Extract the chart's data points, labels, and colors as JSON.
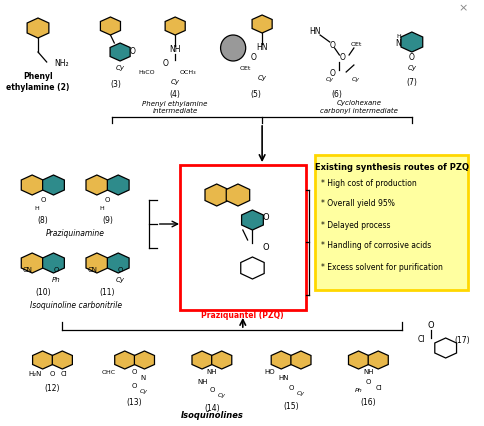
{
  "bg_color": "#ffffff",
  "yellow": "#E8B84B",
  "teal": "#2E8B8B",
  "info_box_bg": "#FFFFA0",
  "info_box_border": "#FFD700",
  "info_title": "Existing synthesis routes of PZQ",
  "info_bullets": [
    "* High cost of production",
    "* Overall yield 95%",
    "* Delayed process",
    "* Handling of corrosive acids",
    "* Excess solvent for purification"
  ],
  "pzq_label": "Praziquantel (PZQ)",
  "label2": "Phenyl\nethylamine (2)",
  "label3": "(3)",
  "label4_grp": "Phenyl ethylamine\nintermediate",
  "label4": "(4)",
  "label5": "(5)",
  "label6": "(6)",
  "label6_grp": "Cyclohexane\ncarbonyl intermediate",
  "label7": "(7)",
  "label8": "(8)",
  "label9": "(9)",
  "label89": "Praziquinamine",
  "label10": "(10)",
  "label11": "(11)",
  "label1011": "Isoquinoline carbonitrile",
  "label12": "(12)",
  "label13": "(13)",
  "label14": "(14)",
  "label15": "(15)",
  "label16": "(16)",
  "label17": "(17)",
  "label_iso": "Isoquinolines"
}
